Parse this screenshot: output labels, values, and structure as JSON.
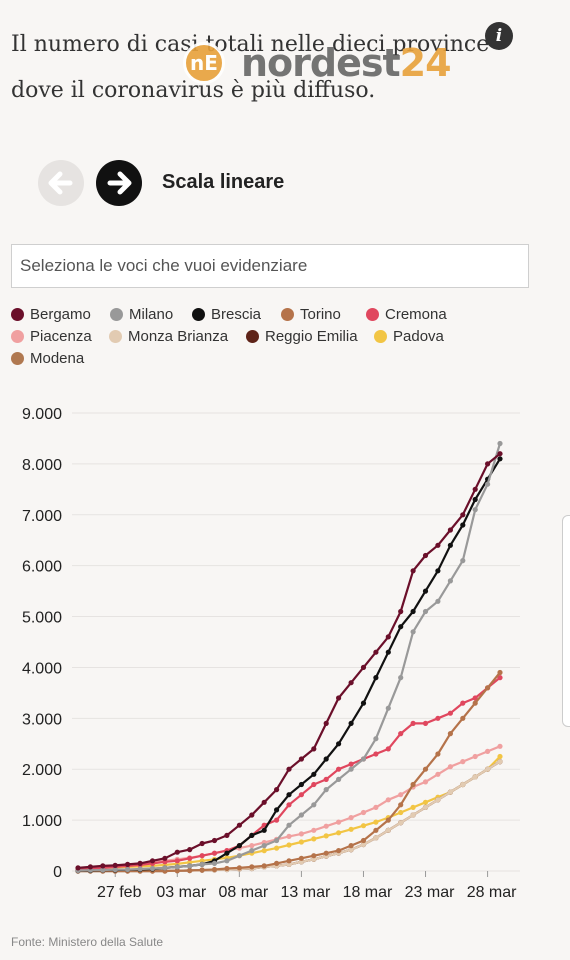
{
  "header": {
    "title": "Il numero di casi totali nelle dieci province dove il coronavirus è più diffuso.",
    "info_icon": "info-icon"
  },
  "watermark": {
    "logo_text": "nE",
    "text_a": "nordest",
    "text_b": "24",
    "accent": "#e8a13a"
  },
  "controls": {
    "scale_label": "Scala lineare",
    "prev_icon": "arrow-left-icon",
    "next_icon": "arrow-right-icon",
    "search_placeholder": "Seleziona le voci che vuoi evidenziare"
  },
  "source": "Fonte: Ministero della Salute",
  "chart_data": {
    "type": "line",
    "title": "",
    "xlabel": "",
    "ylabel": "",
    "ylim": [
      0,
      9000
    ],
    "yticks": [
      0,
      1000,
      2000,
      3000,
      4000,
      5000,
      6000,
      7000,
      8000,
      9000
    ],
    "ytick_labels": [
      "0",
      "1.000",
      "2.000",
      "3.000",
      "4.000",
      "5.000",
      "6.000",
      "7.000",
      "8.000",
      "9.000"
    ],
    "x": [
      "24 feb",
      "25 feb",
      "26 feb",
      "27 feb",
      "28 feb",
      "29 feb",
      "01 mar",
      "02 mar",
      "03 mar",
      "04 mar",
      "05 mar",
      "06 mar",
      "07 mar",
      "08 mar",
      "09 mar",
      "10 mar",
      "11 mar",
      "12 mar",
      "13 mar",
      "14 mar",
      "15 mar",
      "16 mar",
      "17 mar",
      "18 mar",
      "19 mar",
      "20 mar",
      "21 mar",
      "22 mar",
      "23 mar",
      "24 mar",
      "25 mar",
      "26 mar",
      "27 mar",
      "28 mar",
      "29 mar"
    ],
    "xtick_labels": [
      "27 feb",
      "03 mar",
      "08 mar",
      "13 mar",
      "18 mar",
      "23 mar",
      "28 mar"
    ],
    "xtick_index": [
      3,
      8,
      13,
      18,
      23,
      28,
      33
    ],
    "grid": true,
    "legend_position": "top",
    "series": [
      {
        "name": "Bergamo",
        "color": "#6b0f2a",
        "values": [
          60,
          80,
          100,
          110,
          130,
          150,
          200,
          250,
          370,
          420,
          540,
          600,
          700,
          900,
          1100,
          1350,
          1600,
          2000,
          2200,
          2400,
          2900,
          3400,
          3700,
          4000,
          4300,
          4600,
          5100,
          5900,
          6200,
          6400,
          6700,
          7000,
          7500,
          8000,
          8200
        ]
      },
      {
        "name": "Milano",
        "color": "#999999",
        "values": [
          10,
          15,
          20,
          25,
          30,
          40,
          50,
          60,
          80,
          100,
          130,
          150,
          200,
          300,
          400,
          500,
          600,
          900,
          1100,
          1300,
          1600,
          1800,
          2000,
          2200,
          2600,
          3200,
          3800,
          4700,
          5100,
          5300,
          5700,
          6100,
          7100,
          7600,
          8400
        ]
      },
      {
        "name": "Brescia",
        "color": "#111111",
        "values": [
          5,
          10,
          15,
          20,
          25,
          30,
          40,
          60,
          80,
          100,
          130,
          200,
          350,
          500,
          700,
          800,
          1200,
          1500,
          1700,
          1900,
          2200,
          2500,
          2900,
          3300,
          3800,
          4300,
          4800,
          5100,
          5500,
          5900,
          6400,
          6800,
          7300,
          7700,
          8100
        ]
      },
      {
        "name": "Torino",
        "color": "#b5734a",
        "values": [
          0,
          0,
          0,
          0,
          0,
          0,
          0,
          0,
          5,
          10,
          20,
          30,
          50,
          60,
          80,
          100,
          150,
          200,
          250,
          300,
          350,
          400,
          500,
          600,
          800,
          1000,
          1300,
          1700,
          2000,
          2300,
          2700,
          3000,
          3300,
          3600,
          3900
        ]
      },
      {
        "name": "Cremona",
        "color": "#e0475e",
        "values": [
          20,
          40,
          60,
          80,
          100,
          120,
          150,
          180,
          200,
          250,
          300,
          350,
          400,
          500,
          700,
          900,
          1000,
          1300,
          1500,
          1700,
          1800,
          2000,
          2100,
          2200,
          2300,
          2400,
          2700,
          2900,
          2900,
          3000,
          3100,
          3300,
          3400,
          3600,
          3800
        ]
      },
      {
        "name": "Piacenza",
        "color": "#f0a0a0",
        "values": [
          40,
          60,
          80,
          100,
          120,
          150,
          180,
          200,
          230,
          260,
          300,
          350,
          400,
          450,
          500,
          560,
          620,
          680,
          730,
          800,
          880,
          960,
          1050,
          1150,
          1250,
          1400,
          1500,
          1650,
          1750,
          1900,
          2050,
          2150,
          2250,
          2350,
          2450
        ]
      },
      {
        "name": "Monza Brianza",
        "color": "#e2cbb2",
        "values": [
          0,
          0,
          0,
          0,
          0,
          0,
          0,
          0,
          5,
          10,
          15,
          20,
          30,
          40,
          50,
          80,
          100,
          130,
          180,
          230,
          290,
          350,
          420,
          520,
          650,
          800,
          950,
          1100,
          1250,
          1400,
          1550,
          1700,
          1850,
          2000,
          2150
        ]
      },
      {
        "name": "Reggio Emilia",
        "color": "#5e2318",
        "values": [
          0,
          0,
          0,
          0,
          0,
          0,
          0,
          0,
          5,
          10,
          15,
          20,
          30,
          40,
          50,
          80,
          100,
          130,
          180,
          230,
          290,
          350,
          420,
          520,
          650,
          800,
          950,
          1100,
          1250,
          1400,
          1550,
          1700,
          1850,
          2000,
          2150
        ]
      },
      {
        "name": "Padova",
        "color": "#f2c544",
        "values": [
          20,
          40,
          60,
          70,
          80,
          90,
          100,
          120,
          140,
          170,
          200,
          230,
          260,
          300,
          350,
          400,
          450,
          510,
          570,
          630,
          690,
          750,
          820,
          890,
          960,
          1050,
          1150,
          1250,
          1350,
          1450,
          1550,
          1700,
          1850,
          2000,
          2250
        ]
      },
      {
        "name": "Modena",
        "color": "#b07850",
        "values": [
          0,
          0,
          0,
          0,
          0,
          0,
          0,
          0,
          5,
          10,
          15,
          20,
          30,
          40,
          50,
          80,
          100,
          130,
          180,
          230,
          290,
          350,
          420,
          520,
          650,
          800,
          950,
          1100,
          1250,
          1400,
          1550,
          1700,
          1850,
          2000,
          2150
        ]
      }
    ]
  }
}
